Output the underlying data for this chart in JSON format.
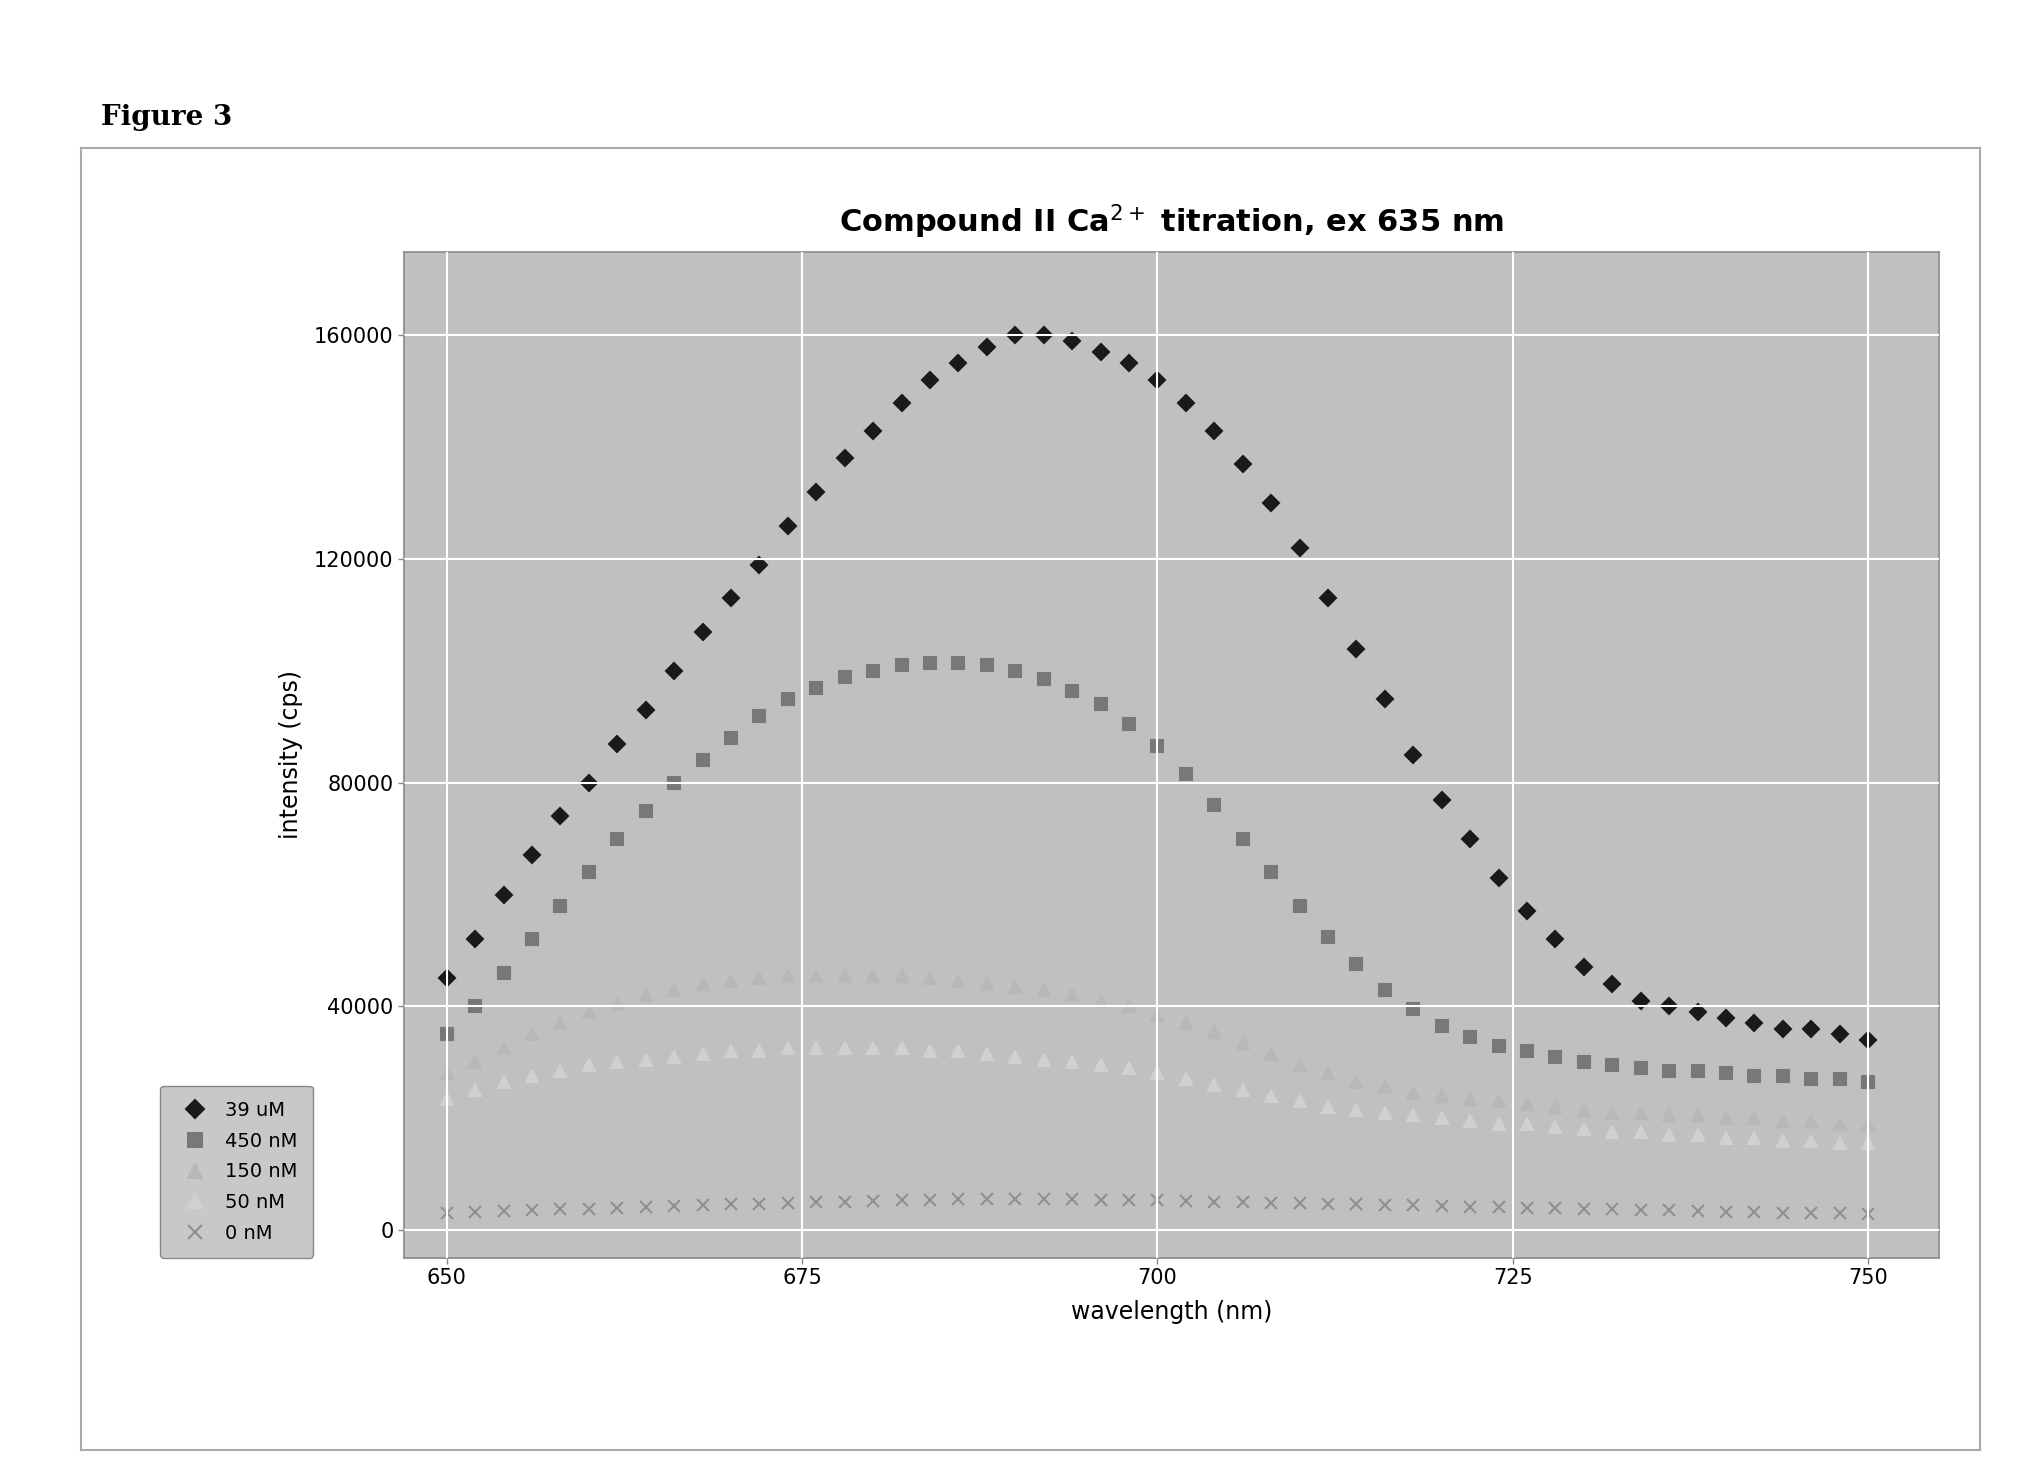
{
  "title": "Compound II Ca$^{2+}$ titration, ex 635 nm",
  "xlabel": "wavelength (nm)",
  "ylabel": "intensity (cps)",
  "xlim": [
    647,
    755
  ],
  "ylim": [
    -5000,
    175000
  ],
  "yticks": [
    0,
    40000,
    80000,
    120000,
    160000
  ],
  "ytick_labels": [
    "0",
    "40000",
    "80000",
    "120000",
    "160000"
  ],
  "xticks": [
    650,
    675,
    700,
    725,
    750
  ],
  "bg_color": "#C0C0C0",
  "outer_bg": "#FFFFFF",
  "fig_label": "Figure 3",
  "series": [
    {
      "label": "39 uM",
      "color": "#1a1a1a",
      "marker": "D",
      "markersize": 8,
      "wavelengths": [
        650,
        652,
        654,
        656,
        658,
        660,
        662,
        664,
        666,
        668,
        670,
        672,
        674,
        676,
        678,
        680,
        682,
        684,
        686,
        688,
        690,
        692,
        694,
        696,
        698,
        700,
        702,
        704,
        706,
        708,
        710,
        712,
        714,
        716,
        718,
        720,
        722,
        724,
        726,
        728,
        730,
        732,
        734,
        736,
        738,
        740,
        742,
        744,
        746,
        748,
        750
      ],
      "intensities": [
        45000,
        52000,
        60000,
        67000,
        74000,
        80000,
        87000,
        93000,
        100000,
        107000,
        113000,
        119000,
        126000,
        132000,
        138000,
        143000,
        148000,
        152000,
        155000,
        158000,
        160000,
        160000,
        159000,
        157000,
        155000,
        152000,
        148000,
        143000,
        137000,
        130000,
        122000,
        113000,
        104000,
        95000,
        85000,
        77000,
        70000,
        63000,
        57000,
        52000,
        47000,
        44000,
        41000,
        40000,
        39000,
        38000,
        37000,
        36000,
        36000,
        35000,
        34000
      ]
    },
    {
      "label": "450 nM",
      "color": "#787878",
      "marker": "s",
      "markersize": 8,
      "wavelengths": [
        650,
        652,
        654,
        656,
        658,
        660,
        662,
        664,
        666,
        668,
        670,
        672,
        674,
        676,
        678,
        680,
        682,
        684,
        686,
        688,
        690,
        692,
        694,
        696,
        698,
        700,
        702,
        704,
        706,
        708,
        710,
        712,
        714,
        716,
        718,
        720,
        722,
        724,
        726,
        728,
        730,
        732,
        734,
        736,
        738,
        740,
        742,
        744,
        746,
        748,
        750
      ],
      "intensities": [
        35000,
        40000,
        46000,
        52000,
        58000,
        64000,
        70000,
        75000,
        80000,
        84000,
        88000,
        92000,
        95000,
        97000,
        99000,
        100000,
        101000,
        101500,
        101500,
        101000,
        100000,
        98500,
        96500,
        94000,
        90500,
        86500,
        81500,
        76000,
        70000,
        64000,
        58000,
        52500,
        47500,
        43000,
        39500,
        36500,
        34500,
        33000,
        32000,
        31000,
        30000,
        29500,
        29000,
        28500,
        28500,
        28000,
        27500,
        27500,
        27000,
        27000,
        26500
      ]
    },
    {
      "label": "150 nM",
      "color": "#b8b8b8",
      "marker": "^",
      "markersize": 8,
      "wavelengths": [
        650,
        652,
        654,
        656,
        658,
        660,
        662,
        664,
        666,
        668,
        670,
        672,
        674,
        676,
        678,
        680,
        682,
        684,
        686,
        688,
        690,
        692,
        694,
        696,
        698,
        700,
        702,
        704,
        706,
        708,
        710,
        712,
        714,
        716,
        718,
        720,
        722,
        724,
        726,
        728,
        730,
        732,
        734,
        736,
        738,
        740,
        742,
        744,
        746,
        748,
        750
      ],
      "intensities": [
        28000,
        30000,
        32500,
        35000,
        37000,
        39000,
        40500,
        42000,
        43000,
        44000,
        44500,
        45000,
        45500,
        45500,
        45500,
        45500,
        45500,
        45000,
        44500,
        44000,
        43500,
        43000,
        42000,
        41000,
        40000,
        38500,
        37000,
        35500,
        33500,
        31500,
        29500,
        28000,
        26500,
        25500,
        24500,
        24000,
        23500,
        23000,
        22500,
        22000,
        21500,
        21000,
        21000,
        20500,
        20500,
        20000,
        20000,
        19500,
        19500,
        19000,
        19000
      ]
    },
    {
      "label": "50 nM",
      "color": "#d0d0d0",
      "marker": "^",
      "markersize": 8,
      "wavelengths": [
        650,
        652,
        654,
        656,
        658,
        660,
        662,
        664,
        666,
        668,
        670,
        672,
        674,
        676,
        678,
        680,
        682,
        684,
        686,
        688,
        690,
        692,
        694,
        696,
        698,
        700,
        702,
        704,
        706,
        708,
        710,
        712,
        714,
        716,
        718,
        720,
        722,
        724,
        726,
        728,
        730,
        732,
        734,
        736,
        738,
        740,
        742,
        744,
        746,
        748,
        750
      ],
      "intensities": [
        23500,
        25000,
        26500,
        27500,
        28500,
        29500,
        30000,
        30500,
        31000,
        31500,
        32000,
        32000,
        32500,
        32500,
        32500,
        32500,
        32500,
        32000,
        32000,
        31500,
        31000,
        30500,
        30000,
        29500,
        29000,
        28000,
        27000,
        26000,
        25000,
        24000,
        23000,
        22000,
        21500,
        21000,
        20500,
        20000,
        19500,
        19000,
        19000,
        18500,
        18000,
        17500,
        17500,
        17000,
        17000,
        16500,
        16500,
        16000,
        16000,
        15500,
        15500
      ]
    },
    {
      "label": "0 nM",
      "color": "#909090",
      "marker": "x",
      "markersize": 8,
      "wavelengths": [
        650,
        652,
        654,
        656,
        658,
        660,
        662,
        664,
        666,
        668,
        670,
        672,
        674,
        676,
        678,
        680,
        682,
        684,
        686,
        688,
        690,
        692,
        694,
        696,
        698,
        700,
        702,
        704,
        706,
        708,
        710,
        712,
        714,
        716,
        718,
        720,
        722,
        724,
        726,
        728,
        730,
        732,
        734,
        736,
        738,
        740,
        742,
        744,
        746,
        748,
        750
      ],
      "intensities": [
        3000,
        3200,
        3400,
        3500,
        3700,
        3800,
        4000,
        4200,
        4300,
        4500,
        4600,
        4700,
        4800,
        5000,
        5100,
        5200,
        5300,
        5400,
        5500,
        5500,
        5500,
        5500,
        5500,
        5400,
        5400,
        5300,
        5200,
        5100,
        5000,
        4900,
        4800,
        4700,
        4600,
        4500,
        4400,
        4300,
        4200,
        4100,
        4000,
        3900,
        3800,
        3700,
        3600,
        3500,
        3400,
        3300,
        3200,
        3100,
        3000,
        3000,
        2900
      ]
    }
  ],
  "legend_labels": [
    "39 uM",
    "450 nM",
    "150 nM",
    "50 nM",
    "0 nM"
  ],
  "legend_marker_colors": [
    "#1a1a1a",
    "#787878",
    "#b8b8b8",
    "#d0d0d0",
    "#909090"
  ],
  "legend_markers": [
    "D",
    "s",
    "^",
    "^",
    "x"
  ]
}
